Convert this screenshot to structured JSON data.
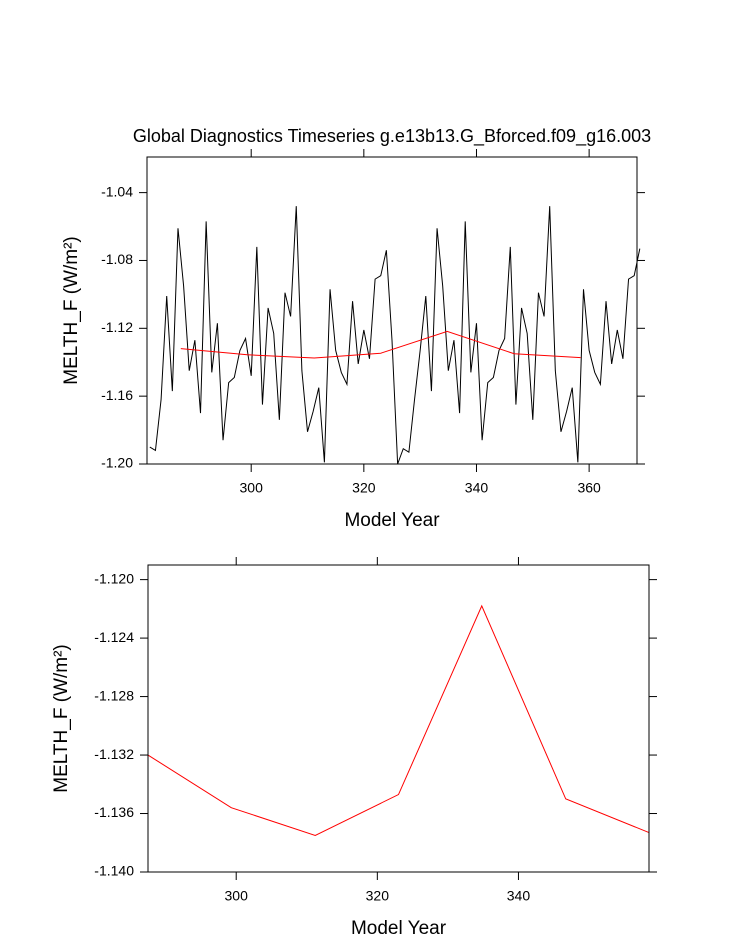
{
  "chart_data": [
    {
      "type": "line",
      "title": "Global Diagnostics Timeseries g.e13b13.G_Bforced.f09_g16.003",
      "x_label": "Model Year",
      "y_label": "MELTH_F (W/m²)",
      "xlim": [
        281.5,
        368.5
      ],
      "xticks": [
        300,
        320,
        340,
        360
      ],
      "ylim": [
        -1.2,
        -1.019
      ],
      "yticks": [
        -1.04,
        -1.08,
        -1.12,
        -1.16,
        {
          "value": -1.2,
          "label": "-1.20"
        }
      ],
      "series": [
        {
          "color": "#000000",
          "x": [
            282,
            283,
            284,
            285,
            286,
            287,
            288,
            289,
            290,
            291,
            292,
            293,
            294,
            295,
            296,
            297,
            298,
            299,
            300,
            301,
            302,
            303,
            304,
            305,
            306,
            307,
            308,
            309,
            310,
            311,
            312,
            313,
            314,
            315,
            316,
            317,
            318,
            319,
            320,
            321,
            322,
            323,
            324,
            325,
            326,
            327,
            328,
            329,
            330,
            331,
            332,
            333,
            334,
            335,
            336,
            337,
            338,
            339,
            340,
            341,
            342,
            343,
            344,
            345,
            346,
            347,
            348,
            349,
            350,
            351,
            352,
            353,
            354,
            355,
            356,
            357,
            358,
            359,
            360,
            361,
            362,
            363,
            364,
            365,
            366,
            367,
            368,
            369
          ],
          "values": [
            -1.19,
            -1.192,
            -1.162,
            -1.101,
            -1.157,
            -1.061,
            -1.095,
            -1.145,
            -1.127,
            -1.17,
            -1.057,
            -1.146,
            -1.117,
            -1.186,
            -1.152,
            -1.149,
            -1.133,
            -1.126,
            -1.148,
            -1.072,
            -1.165,
            -1.108,
            -1.123,
            -1.174,
            -1.099,
            -1.113,
            -1.048,
            -1.145,
            -1.181,
            -1.169,
            -1.155,
            -1.199,
            -1.097,
            -1.133,
            -1.146,
            -1.153,
            -1.104,
            -1.141,
            -1.121,
            -1.138,
            -1.091,
            -1.089,
            -1.074,
            -1.127,
            -1.2,
            -1.191,
            -1.193,
            -1.162,
            -1.133,
            -1.101,
            -1.157,
            -1.061,
            -1.095,
            -1.145,
            -1.127,
            -1.17,
            -1.057,
            -1.146,
            -1.117,
            -1.186,
            -1.152,
            -1.149,
            -1.133,
            -1.126,
            -1.072,
            -1.165,
            -1.108,
            -1.123,
            -1.174,
            -1.099,
            -1.113,
            -1.048,
            -1.145,
            -1.181,
            -1.169,
            -1.155,
            -1.199,
            -1.097,
            -1.133,
            -1.146,
            -1.153,
            -1.104,
            -1.141,
            -1.121,
            -1.138,
            -1.091,
            -1.089,
            -1.073
          ]
        },
        {
          "color": "#ff0000",
          "x": [
            287.5,
            299.3,
            311.2,
            323,
            334.8,
            346.7,
            358.5
          ],
          "values": [
            -1.132,
            -1.1356,
            -1.1375,
            -1.1347,
            -1.1218,
            -1.135,
            -1.1373
          ]
        }
      ]
    },
    {
      "type": "line",
      "x_label": "Model Year",
      "y_label": "MELTH_F (W/m²)",
      "xlim": [
        287.5,
        358.5
      ],
      "xticks": [
        300,
        320,
        340
      ],
      "ylim": [
        -1.14,
        -1.119
      ],
      "yticks": [
        {
          "value": -1.12,
          "label": "-1.120"
        },
        -1.124,
        -1.128,
        -1.132,
        -1.136,
        {
          "value": -1.14,
          "label": "-1.140"
        }
      ],
      "series": [
        {
          "color": "#ff0000",
          "x": [
            287.5,
            299.3,
            311.2,
            323,
            334.8,
            346.7,
            358.5
          ],
          "values": [
            -1.132,
            -1.1356,
            -1.1375,
            -1.1347,
            -1.1218,
            -1.135,
            -1.1373
          ]
        }
      ]
    }
  ]
}
